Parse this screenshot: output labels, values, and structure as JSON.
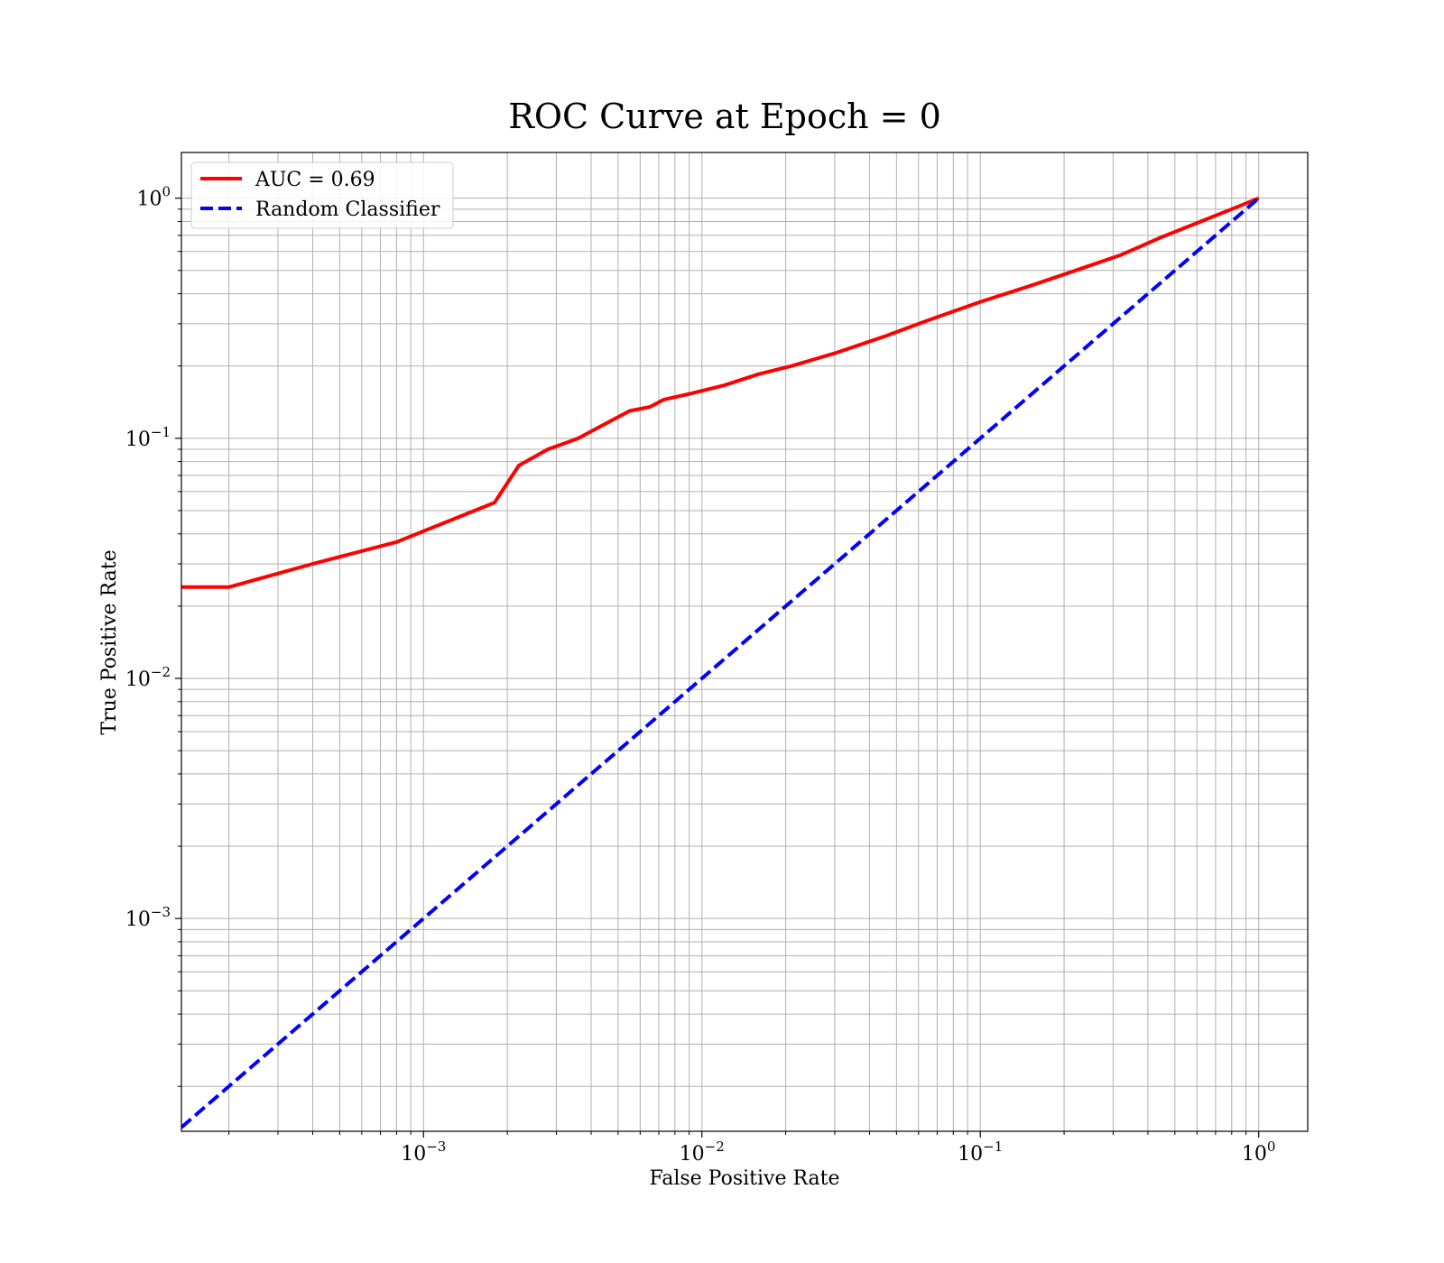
{
  "chart_data": {
    "type": "line",
    "title": "ROC Curve at Epoch = 0",
    "xlabel": "False Positive Rate",
    "ylabel": "True Positive Rate",
    "xscale": "log",
    "yscale": "log",
    "xlim": [
      0.000135,
      1.5
    ],
    "ylim": [
      0.00013,
      1.55
    ],
    "grid": "both-major-and-minor",
    "legend_placement": "upper-left",
    "x_ticks": [
      {
        "base": "10",
        "exp": "−3",
        "value": 0.001
      },
      {
        "base": "10",
        "exp": "−2",
        "value": 0.01
      },
      {
        "base": "10",
        "exp": "−1",
        "value": 0.1
      },
      {
        "base": "10",
        "exp": "0",
        "value": 1
      }
    ],
    "y_ticks": [
      {
        "base": "10",
        "exp": "−3",
        "value": 0.001
      },
      {
        "base": "10",
        "exp": "−2",
        "value": 0.01
      },
      {
        "base": "10",
        "exp": "−1",
        "value": 0.1
      },
      {
        "base": "10",
        "exp": "0",
        "value": 1
      }
    ],
    "series": [
      {
        "name": "AUC = 0.69",
        "color": "#ff0000",
        "style": "solid",
        "x": [
          0.000135,
          0.0002,
          0.0004,
          0.0008,
          0.0018,
          0.0022,
          0.0028,
          0.0036,
          0.0045,
          0.0055,
          0.0065,
          0.0073,
          0.009,
          0.012,
          0.016,
          0.021,
          0.03,
          0.045,
          0.065,
          0.1,
          0.15,
          0.22,
          0.32,
          0.45,
          0.62,
          0.8,
          1.0
        ],
        "y": [
          0.024,
          0.024,
          0.03,
          0.037,
          0.054,
          0.077,
          0.09,
          0.1,
          0.115,
          0.13,
          0.135,
          0.145,
          0.153,
          0.166,
          0.185,
          0.2,
          0.226,
          0.265,
          0.31,
          0.37,
          0.43,
          0.5,
          0.58,
          0.69,
          0.8,
          0.9,
          1.0
        ]
      },
      {
        "name": "Random Classifier",
        "color": "#0000ff",
        "style": "dashed",
        "x": [
          0.000135,
          1.0
        ],
        "y": [
          0.000135,
          1.0
        ]
      }
    ]
  }
}
